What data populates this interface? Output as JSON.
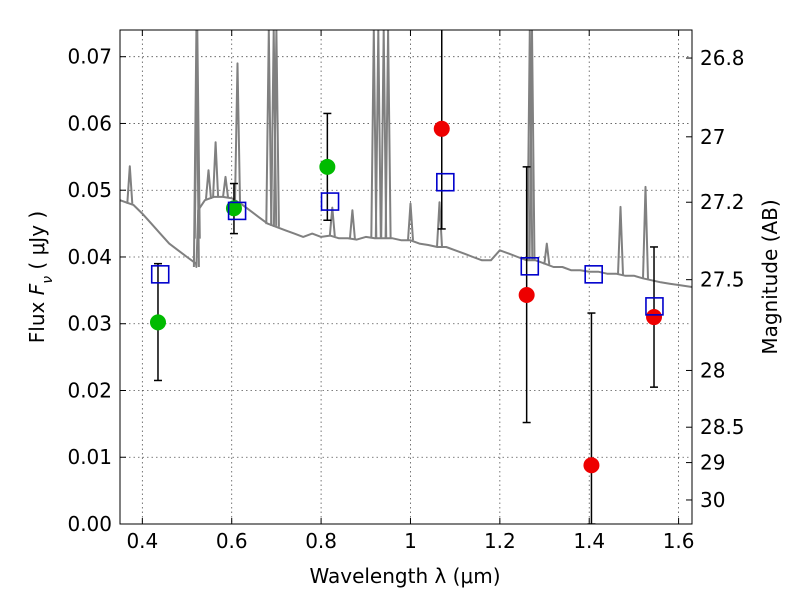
{
  "chart_data": {
    "type": "scatter",
    "xlabel": "Wavelength  λ (μm)",
    "ylabel": "Flux  F_ν  ( μJy )",
    "ylabel_parts": {
      "pre": "Flux  ",
      "sym": "F",
      "sub": "ν",
      "post": "  ( μJy )"
    },
    "y2label": "Magnitude (AB)",
    "xlim": [
      0.35,
      1.63
    ],
    "ylim": [
      0.0,
      0.074
    ],
    "grid": true,
    "x_ticks": [
      {
        "value": 0.4,
        "label": "0.4"
      },
      {
        "value": 0.6,
        "label": "0.6"
      },
      {
        "value": 0.8,
        "label": "0.8"
      },
      {
        "value": 1.0,
        "label": "1"
      },
      {
        "value": 1.2,
        "label": "1.2"
      },
      {
        "value": 1.4,
        "label": "1.4"
      },
      {
        "value": 1.6,
        "label": "1.6"
      }
    ],
    "y_ticks": [
      {
        "value": 0.0,
        "label": "0.00"
      },
      {
        "value": 0.01,
        "label": "0.01"
      },
      {
        "value": 0.02,
        "label": "0.02"
      },
      {
        "value": 0.03,
        "label": "0.03"
      },
      {
        "value": 0.04,
        "label": "0.04"
      },
      {
        "value": 0.05,
        "label": "0.05"
      },
      {
        "value": 0.06,
        "label": "0.06"
      },
      {
        "value": 0.07,
        "label": "0.07"
      }
    ],
    "y2_ticks": [
      {
        "label": "26.8",
        "flux": 0.0698
      },
      {
        "label": "27",
        "flux": 0.058
      },
      {
        "label": "27.2",
        "flux": 0.0482
      },
      {
        "label": "27.5",
        "flux": 0.0366
      },
      {
        "label": "28",
        "flux": 0.023
      },
      {
        "label": "28.5",
        "flux": 0.0145
      },
      {
        "label": "29",
        "flux": 0.0092
      },
      {
        "label": "30",
        "flux": 0.0036
      }
    ],
    "colors": {
      "sed": "#808080",
      "detection": "#00bb00",
      "low_sn": "#ee0000",
      "model": "#0000cc",
      "errorbar": "#000000",
      "grid": "#555555"
    },
    "series": [
      {
        "kind": "sed_model_spectrum",
        "color": "#808080",
        "x": [
          0.35,
          0.38,
          0.4,
          0.42,
          0.44,
          0.46,
          0.48,
          0.5,
          0.52,
          0.521,
          0.525,
          0.54,
          0.56,
          0.58,
          0.6,
          0.62,
          0.64,
          0.66,
          0.68,
          0.7,
          0.72,
          0.74,
          0.76,
          0.78,
          0.8,
          0.82,
          0.84,
          0.86,
          0.88,
          0.9,
          0.92,
          0.94,
          0.96,
          0.98,
          1.0,
          1.02,
          1.04,
          1.06,
          1.08,
          1.1,
          1.12,
          1.14,
          1.16,
          1.18,
          1.2,
          1.22,
          1.24,
          1.26,
          1.28,
          1.3,
          1.32,
          1.34,
          1.36,
          1.38,
          1.4,
          1.42,
          1.44,
          1.46,
          1.48,
          1.5,
          1.52,
          1.54,
          1.56,
          1.58,
          1.6,
          1.63
        ],
        "y": [
          0.0485,
          0.0478,
          0.0465,
          0.045,
          0.0435,
          0.042,
          0.041,
          0.04,
          0.039,
          0.0385,
          0.047,
          0.0485,
          0.049,
          0.049,
          0.0488,
          0.048,
          0.047,
          0.046,
          0.045,
          0.0445,
          0.044,
          0.0435,
          0.043,
          0.0435,
          0.043,
          0.0432,
          0.0428,
          0.0428,
          0.0426,
          0.043,
          0.0428,
          0.0428,
          0.0428,
          0.0425,
          0.0425,
          0.042,
          0.0418,
          0.0415,
          0.0415,
          0.041,
          0.0405,
          0.04,
          0.0395,
          0.0395,
          0.041,
          0.0405,
          0.04,
          0.0395,
          0.0395,
          0.039,
          0.0385,
          0.0385,
          0.038,
          0.038,
          0.0378,
          0.0378,
          0.0375,
          0.0375,
          0.0372,
          0.0372,
          0.0368,
          0.0365,
          0.0362,
          0.036,
          0.0358,
          0.0355
        ],
        "emission_lines": [
          {
            "x": 0.372,
            "peak": 0.0536
          },
          {
            "x": 0.521,
            "peak": 0.074
          },
          {
            "x": 0.523,
            "peak": 0.074
          },
          {
            "x": 0.548,
            "peak": 0.053
          },
          {
            "x": 0.564,
            "peak": 0.0572
          },
          {
            "x": 0.586,
            "peak": 0.052
          },
          {
            "x": 0.613,
            "peak": 0.069
          },
          {
            "x": 0.683,
            "peak": 0.074
          },
          {
            "x": 0.694,
            "peak": 0.074
          },
          {
            "x": 0.7,
            "peak": 0.074
          },
          {
            "x": 0.825,
            "peak": 0.0474
          },
          {
            "x": 0.87,
            "peak": 0.047
          },
          {
            "x": 0.918,
            "peak": 0.074
          },
          {
            "x": 0.928,
            "peak": 0.074
          },
          {
            "x": 0.94,
            "peak": 0.074
          },
          {
            "x": 0.95,
            "peak": 0.074
          },
          {
            "x": 1.0,
            "peak": 0.048
          },
          {
            "x": 1.065,
            "peak": 0.0482
          },
          {
            "x": 1.267,
            "peak": 0.074
          },
          {
            "x": 1.272,
            "peak": 0.074
          },
          {
            "x": 1.305,
            "peak": 0.042
          },
          {
            "x": 1.47,
            "peak": 0.0475
          },
          {
            "x": 1.526,
            "peak": 0.0505
          }
        ]
      },
      {
        "kind": "observed_detections",
        "color": "#00bb00",
        "points": [
          {
            "x": 0.435,
            "y": 0.0302
          },
          {
            "x": 0.605,
            "y": 0.0473
          },
          {
            "x": 0.814,
            "y": 0.0535
          }
        ]
      },
      {
        "kind": "observed_low_sn",
        "color": "#ee0000",
        "points": [
          {
            "x": 1.07,
            "y": 0.0592
          },
          {
            "x": 1.26,
            "y": 0.0343
          },
          {
            "x": 1.405,
            "y": 0.0088
          },
          {
            "x": 1.545,
            "y": 0.031
          }
        ]
      },
      {
        "kind": "model_photometry",
        "color": "#0000cc",
        "points": [
          {
            "x": 0.44,
            "y": 0.0374
          },
          {
            "x": 0.612,
            "y": 0.0469
          },
          {
            "x": 0.82,
            "y": 0.0483
          },
          {
            "x": 1.078,
            "y": 0.0512
          },
          {
            "x": 1.267,
            "y": 0.0386
          },
          {
            "x": 1.41,
            "y": 0.0374
          },
          {
            "x": 1.546,
            "y": 0.0326
          }
        ]
      },
      {
        "kind": "error_bars",
        "color": "#000000",
        "bars": [
          {
            "x": 0.435,
            "lo": 0.0215,
            "hi": 0.039
          },
          {
            "x": 0.605,
            "lo": 0.0435,
            "hi": 0.051
          },
          {
            "x": 0.814,
            "lo": 0.0455,
            "hi": 0.0615
          },
          {
            "x": 1.07,
            "lo": 0.0442,
            "hi": 0.0742
          },
          {
            "x": 1.26,
            "lo": 0.0152,
            "hi": 0.0535
          },
          {
            "x": 1.405,
            "lo": 0.0,
            "hi": 0.0316
          },
          {
            "x": 1.545,
            "lo": 0.0205,
            "hi": 0.0415
          }
        ]
      }
    ]
  }
}
